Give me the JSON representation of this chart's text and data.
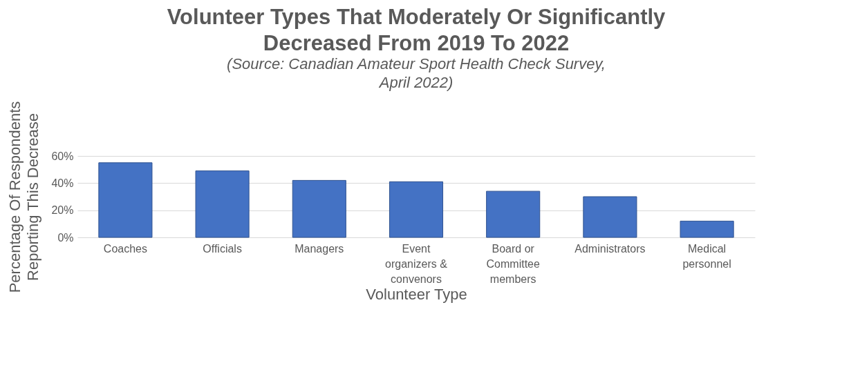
{
  "chart_data": {
    "type": "bar",
    "title": "Volunteer Types That Moderately Or Significantly Decreased From 2019 To 2022",
    "annotations": [
      "(Source: Canadian Amateur Sport Health Check Survey, April 2022)"
    ],
    "xlabel": "Volunteer Type",
    "ylabel": "Percentage Of Respondents Reporting This Decrease",
    "categories": [
      "Coaches",
      "Officials",
      "Managers",
      "Event organizers & convenors",
      "Board or Committee members",
      "Administrators",
      "Medical personnel"
    ],
    "values": [
      55,
      49,
      42,
      41,
      34,
      30,
      12
    ],
    "color": "#4472c4",
    "ylim": [
      0,
      60
    ],
    "yticks": [
      {
        "value": 0,
        "label": "0%"
      },
      {
        "value": 20,
        "label": "20%"
      },
      {
        "value": 40,
        "label": "40%"
      },
      {
        "value": 60,
        "label": "60%"
      }
    ],
    "grid": "y"
  }
}
